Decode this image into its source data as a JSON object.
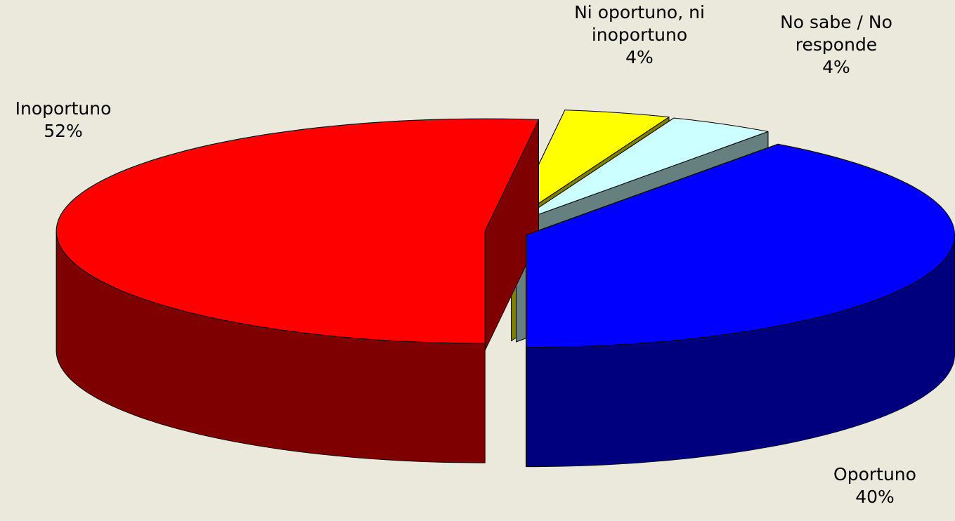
{
  "chart_data": {
    "type": "pie3d",
    "categories": [
      "Inoportuno",
      "Ni oportuno, ni inoportuno",
      "No sabe / No responde",
      "Oportuno"
    ],
    "values": [
      52,
      4,
      4,
      40
    ],
    "value_labels": [
      "52%",
      "4%",
      "4%",
      "40%"
    ],
    "colors": [
      "#ff0000",
      "#ffff00",
      "#ccffff",
      "#0000ff"
    ]
  }
}
